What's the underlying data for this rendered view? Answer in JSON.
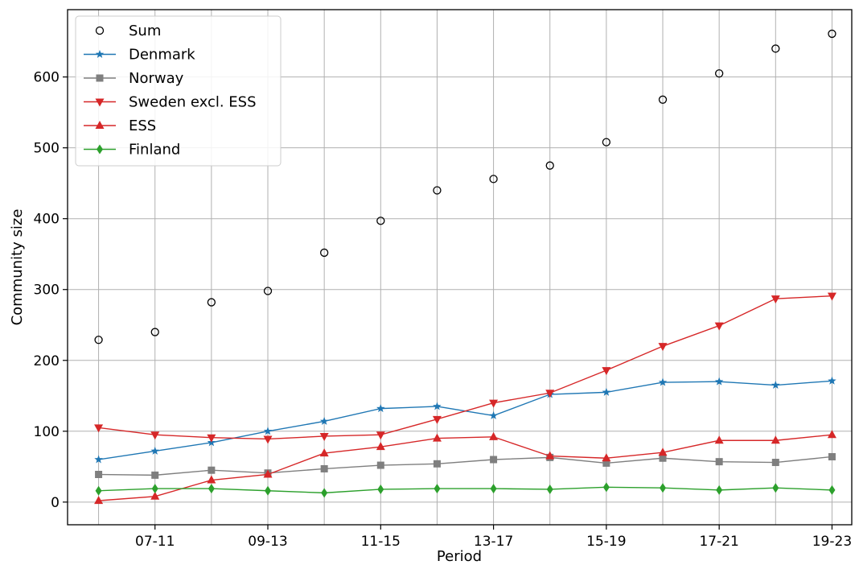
{
  "chart_data": {
    "type": "line",
    "xlabel": "Period",
    "ylabel": "Community size",
    "ylim": [
      -32,
      695
    ],
    "yticks": [
      0,
      100,
      200,
      300,
      400,
      500,
      600
    ],
    "ytick_labels": [
      "0",
      "100",
      "200",
      "300",
      "400",
      "500",
      "600"
    ],
    "xlim": [
      0.45,
      14.35
    ],
    "xtick_labels": [
      "07-11",
      "09-13",
      "11-15",
      "13-17",
      "15-19",
      "17-21",
      "19-23"
    ],
    "xtick_positions": [
      2,
      4,
      6,
      8,
      10,
      12,
      14
    ],
    "grid": true,
    "legend_position": "top-left",
    "x": [
      1,
      2,
      3,
      4,
      5,
      6,
      7,
      8,
      9,
      10,
      11,
      12,
      13,
      14
    ],
    "series": [
      {
        "name": "Sum",
        "color": "#000000",
        "marker": "open-circle",
        "line": false,
        "values": [
          229,
          240,
          282,
          298,
          352,
          397,
          440,
          456,
          475,
          508,
          568,
          605,
          640,
          661
        ]
      },
      {
        "name": "Denmark",
        "color": "#1f77b4",
        "marker": "star",
        "line": true,
        "values": [
          60,
          72,
          84,
          100,
          114,
          132,
          135,
          122,
          152,
          155,
          169,
          170,
          165,
          171
        ]
      },
      {
        "name": "Norway",
        "color": "#7f7f7f",
        "marker": "square",
        "line": true,
        "values": [
          39,
          38,
          45,
          41,
          47,
          52,
          54,
          60,
          63,
          55,
          62,
          57,
          56,
          64
        ]
      },
      {
        "name": "Sweden excl. ESS",
        "color": "#d62728",
        "marker": "triangle-down",
        "line": true,
        "values": [
          105,
          95,
          91,
          89,
          93,
          95,
          117,
          140,
          154,
          186,
          220,
          249,
          287,
          291
        ]
      },
      {
        "name": "ESS",
        "color": "#d62728",
        "marker": "triangle-up",
        "line": true,
        "values": [
          2,
          8,
          31,
          39,
          69,
          78,
          90,
          92,
          65,
          62,
          70,
          87,
          87,
          95
        ]
      },
      {
        "name": "Finland",
        "color": "#2ca02c",
        "marker": "diamond",
        "line": true,
        "values": [
          16,
          19,
          19,
          16,
          13,
          18,
          19,
          19,
          18,
          21,
          20,
          17,
          20,
          17
        ]
      }
    ]
  }
}
